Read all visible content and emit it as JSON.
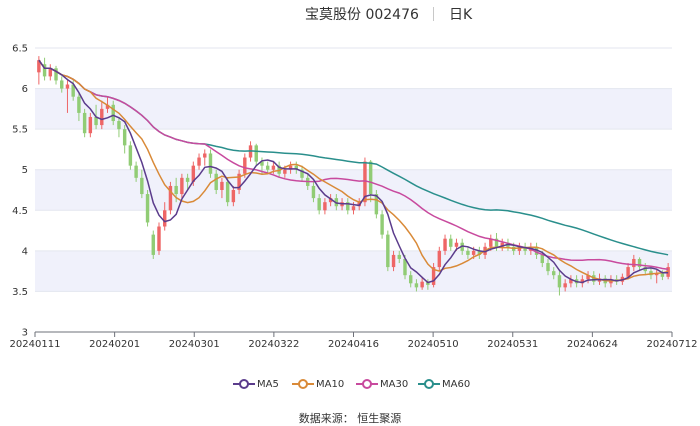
{
  "title": {
    "name": "宝莫股份 002476",
    "period": "日K"
  },
  "source": "数据来源： 恒生聚源",
  "colors": {
    "up": "#ee6666",
    "down": "#91cc75",
    "ma5": "#5b3c8c",
    "ma10": "#d98a38",
    "ma30": "#c84a9e",
    "ma60": "#2a8f8c",
    "band": "#f0f1fb"
  },
  "chart_data": {
    "type": "candlestick",
    "y_ticks": [
      "3",
      "3.5",
      "4",
      "4.5",
      "5",
      "5.5",
      "6",
      "6.5"
    ],
    "ylim": [
      3,
      6.5
    ],
    "x_ticks": [
      "20240111",
      "20240201",
      "20240301",
      "20240322",
      "20240416",
      "20240510",
      "20240531",
      "20240624",
      "20240712"
    ],
    "legend": [
      "MA5",
      "MA10",
      "MA30",
      "MA60"
    ],
    "candles": [
      {
        "o": 6.2,
        "c": 6.35,
        "h": 6.4,
        "l": 6.05
      },
      {
        "o": 6.3,
        "c": 6.15,
        "h": 6.38,
        "l": 6.1
      },
      {
        "o": 6.15,
        "c": 6.25,
        "h": 6.3,
        "l": 6.1
      },
      {
        "o": 6.25,
        "c": 6.1,
        "h": 6.28,
        "l": 6.05
      },
      {
        "o": 6.1,
        "c": 6.0,
        "h": 6.15,
        "l": 5.95
      },
      {
        "o": 6.0,
        "c": 6.05,
        "h": 6.1,
        "l": 5.7
      },
      {
        "o": 6.05,
        "c": 5.9,
        "h": 6.1,
        "l": 5.85
      },
      {
        "o": 5.9,
        "c": 5.7,
        "h": 5.95,
        "l": 5.6
      },
      {
        "o": 5.7,
        "c": 5.45,
        "h": 5.75,
        "l": 5.4
      },
      {
        "o": 5.45,
        "c": 5.65,
        "h": 5.7,
        "l": 5.4
      },
      {
        "o": 5.65,
        "c": 5.55,
        "h": 5.8,
        "l": 5.5
      },
      {
        "o": 5.55,
        "c": 5.75,
        "h": 5.85,
        "l": 5.5
      },
      {
        "o": 5.75,
        "c": 5.8,
        "h": 5.9,
        "l": 5.7
      },
      {
        "o": 5.8,
        "c": 5.6,
        "h": 5.85,
        "l": 5.55
      },
      {
        "o": 5.6,
        "c": 5.5,
        "h": 5.65,
        "l": 5.4
      },
      {
        "o": 5.5,
        "c": 5.3,
        "h": 5.55,
        "l": 5.2
      },
      {
        "o": 5.3,
        "c": 5.05,
        "h": 5.35,
        "l": 5.0
      },
      {
        "o": 5.05,
        "c": 4.9,
        "h": 5.1,
        "l": 4.85
      },
      {
        "o": 4.9,
        "c": 4.7,
        "h": 5.0,
        "l": 4.65
      },
      {
        "o": 4.7,
        "c": 4.35,
        "h": 4.75,
        "l": 4.3
      },
      {
        "o": 4.2,
        "c": 3.95,
        "h": 4.25,
        "l": 3.9
      },
      {
        "o": 4.0,
        "c": 4.3,
        "h": 4.35,
        "l": 3.95
      },
      {
        "o": 4.3,
        "c": 4.5,
        "h": 4.6,
        "l": 4.25
      },
      {
        "o": 4.5,
        "c": 4.8,
        "h": 4.85,
        "l": 4.45
      },
      {
        "o": 4.8,
        "c": 4.7,
        "h": 4.9,
        "l": 4.6
      },
      {
        "o": 4.7,
        "c": 4.9,
        "h": 4.95,
        "l": 4.65
      },
      {
        "o": 4.9,
        "c": 4.85,
        "h": 4.95,
        "l": 4.75
      },
      {
        "o": 4.85,
        "c": 5.05,
        "h": 5.1,
        "l": 4.8
      },
      {
        "o": 5.05,
        "c": 5.15,
        "h": 5.2,
        "l": 5.0
      },
      {
        "o": 5.15,
        "c": 5.2,
        "h": 5.25,
        "l": 5.05
      },
      {
        "o": 5.2,
        "c": 4.95,
        "h": 5.25,
        "l": 4.9
      },
      {
        "o": 4.95,
        "c": 4.75,
        "h": 5.0,
        "l": 4.7
      },
      {
        "o": 4.75,
        "c": 4.85,
        "h": 4.9,
        "l": 4.65
      },
      {
        "o": 4.85,
        "c": 4.6,
        "h": 4.9,
        "l": 4.55
      },
      {
        "o": 4.6,
        "c": 4.75,
        "h": 4.8,
        "l": 4.55
      },
      {
        "o": 4.75,
        "c": 4.95,
        "h": 5.0,
        "l": 4.7
      },
      {
        "o": 4.95,
        "c": 5.15,
        "h": 5.2,
        "l": 4.9
      },
      {
        "o": 5.15,
        "c": 5.3,
        "h": 5.35,
        "l": 5.1
      },
      {
        "o": 5.3,
        "c": 5.1,
        "h": 5.32,
        "l": 5.05
      },
      {
        "o": 5.1,
        "c": 5.05,
        "h": 5.15,
        "l": 4.95
      },
      {
        "o": 5.05,
        "c": 5.0,
        "h": 5.1,
        "l": 4.95
      },
      {
        "o": 5.0,
        "c": 5.05,
        "h": 5.1,
        "l": 4.95
      },
      {
        "o": 5.05,
        "c": 4.95,
        "h": 5.1,
        "l": 4.9
      },
      {
        "o": 4.95,
        "c": 5.0,
        "h": 5.05,
        "l": 4.9
      },
      {
        "o": 5.0,
        "c": 5.05,
        "h": 5.1,
        "l": 4.95
      },
      {
        "o": 5.05,
        "c": 5.0,
        "h": 5.1,
        "l": 4.95
      },
      {
        "o": 5.0,
        "c": 4.9,
        "h": 5.05,
        "l": 4.85
      },
      {
        "o": 4.9,
        "c": 4.8,
        "h": 4.95,
        "l": 4.75
      },
      {
        "o": 4.8,
        "c": 4.65,
        "h": 4.85,
        "l": 4.6
      },
      {
        "o": 4.65,
        "c": 4.5,
        "h": 4.7,
        "l": 4.45
      },
      {
        "o": 4.5,
        "c": 4.6,
        "h": 4.65,
        "l": 4.45
      },
      {
        "o": 4.6,
        "c": 4.65,
        "h": 4.7,
        "l": 4.55
      },
      {
        "o": 4.65,
        "c": 4.55,
        "h": 4.7,
        "l": 4.5
      },
      {
        "o": 4.55,
        "c": 4.6,
        "h": 4.65,
        "l": 4.5
      },
      {
        "o": 4.6,
        "c": 4.5,
        "h": 4.65,
        "l": 4.45
      },
      {
        "o": 4.5,
        "c": 4.55,
        "h": 4.6,
        "l": 4.45
      },
      {
        "o": 4.55,
        "c": 4.6,
        "h": 4.65,
        "l": 4.5
      },
      {
        "o": 4.6,
        "c": 5.1,
        "h": 5.15,
        "l": 4.55
      },
      {
        "o": 5.1,
        "c": 4.7,
        "h": 5.12,
        "l": 4.6
      },
      {
        "o": 4.7,
        "c": 4.45,
        "h": 4.75,
        "l": 4.4
      },
      {
        "o": 4.45,
        "c": 4.2,
        "h": 4.5,
        "l": 4.15
      },
      {
        "o": 4.2,
        "c": 3.8,
        "h": 4.25,
        "l": 3.75
      },
      {
        "o": 3.8,
        "c": 3.95,
        "h": 4.0,
        "l": 3.75
      },
      {
        "o": 3.95,
        "c": 3.9,
        "h": 4.0,
        "l": 3.85
      },
      {
        "o": 3.9,
        "c": 3.7,
        "h": 3.95,
        "l": 3.65
      },
      {
        "o": 3.7,
        "c": 3.6,
        "h": 3.75,
        "l": 3.55
      },
      {
        "o": 3.6,
        "c": 3.55,
        "h": 3.65,
        "l": 3.5
      },
      {
        "o": 3.55,
        "c": 3.62,
        "h": 3.68,
        "l": 3.52
      },
      {
        "o": 3.62,
        "c": 3.58,
        "h": 3.65,
        "l": 3.52
      },
      {
        "o": 3.58,
        "c": 3.8,
        "h": 3.85,
        "l": 3.55
      },
      {
        "o": 3.8,
        "c": 4.0,
        "h": 4.05,
        "l": 3.75
      },
      {
        "o": 4.0,
        "c": 4.15,
        "h": 4.2,
        "l": 3.95
      },
      {
        "o": 4.15,
        "c": 4.05,
        "h": 4.2,
        "l": 4.0
      },
      {
        "o": 4.05,
        "c": 4.1,
        "h": 4.15,
        "l": 4.0
      },
      {
        "o": 4.1,
        "c": 4.0,
        "h": 4.15,
        "l": 3.95
      },
      {
        "o": 4.0,
        "c": 3.95,
        "h": 4.05,
        "l": 3.9
      },
      {
        "o": 3.95,
        "c": 4.0,
        "h": 4.05,
        "l": 3.9
      },
      {
        "o": 4.0,
        "c": 3.95,
        "h": 4.05,
        "l": 3.9
      },
      {
        "o": 3.95,
        "c": 4.05,
        "h": 4.1,
        "l": 3.9
      },
      {
        "o": 4.05,
        "c": 4.15,
        "h": 4.2,
        "l": 4.0
      },
      {
        "o": 4.15,
        "c": 4.05,
        "h": 4.22,
        "l": 4.0
      },
      {
        "o": 4.05,
        "c": 4.1,
        "h": 4.15,
        "l": 4.0
      },
      {
        "o": 4.1,
        "c": 4.05,
        "h": 4.15,
        "l": 4.0
      },
      {
        "o": 4.05,
        "c": 4.0,
        "h": 4.1,
        "l": 3.95
      },
      {
        "o": 4.0,
        "c": 4.05,
        "h": 4.1,
        "l": 3.95
      },
      {
        "o": 4.05,
        "c": 4.0,
        "h": 4.1,
        "l": 3.95
      },
      {
        "o": 4.0,
        "c": 4.05,
        "h": 4.1,
        "l": 3.95
      },
      {
        "o": 4.05,
        "c": 3.95,
        "h": 4.1,
        "l": 3.9
      },
      {
        "o": 3.95,
        "c": 3.85,
        "h": 4.0,
        "l": 3.8
      },
      {
        "o": 3.85,
        "c": 3.75,
        "h": 3.9,
        "l": 3.7
      },
      {
        "o": 3.75,
        "c": 3.7,
        "h": 3.8,
        "l": 3.65
      },
      {
        "o": 3.7,
        "c": 3.55,
        "h": 3.75,
        "l": 3.45
      },
      {
        "o": 3.55,
        "c": 3.6,
        "h": 3.65,
        "l": 3.5
      },
      {
        "o": 3.6,
        "c": 3.65,
        "h": 3.7,
        "l": 3.55
      },
      {
        "o": 3.65,
        "c": 3.6,
        "h": 3.7,
        "l": 3.55
      },
      {
        "o": 3.6,
        "c": 3.65,
        "h": 3.7,
        "l": 3.55
      },
      {
        "o": 3.65,
        "c": 3.7,
        "h": 3.75,
        "l": 3.6
      },
      {
        "o": 3.7,
        "c": 3.62,
        "h": 3.75,
        "l": 3.58
      },
      {
        "o": 3.62,
        "c": 3.66,
        "h": 3.72,
        "l": 3.58
      },
      {
        "o": 3.66,
        "c": 3.6,
        "h": 3.7,
        "l": 3.55
      },
      {
        "o": 3.6,
        "c": 3.65,
        "h": 3.7,
        "l": 3.55
      },
      {
        "o": 3.65,
        "c": 3.62,
        "h": 3.7,
        "l": 3.58
      },
      {
        "o": 3.62,
        "c": 3.68,
        "h": 3.72,
        "l": 3.58
      },
      {
        "o": 3.68,
        "c": 3.8,
        "h": 3.85,
        "l": 3.65
      },
      {
        "o": 3.8,
        "c": 3.9,
        "h": 3.95,
        "l": 3.75
      },
      {
        "o": 3.9,
        "c": 3.8,
        "h": 3.92,
        "l": 3.75
      },
      {
        "o": 3.8,
        "c": 3.75,
        "h": 3.85,
        "l": 3.7
      },
      {
        "o": 3.75,
        "c": 3.7,
        "h": 3.8,
        "l": 3.65
      },
      {
        "o": 3.7,
        "c": 3.72,
        "h": 3.78,
        "l": 3.6
      },
      {
        "o": 3.72,
        "c": 3.68,
        "h": 3.76,
        "l": 3.64
      },
      {
        "o": 3.68,
        "c": 3.8,
        "h": 3.85,
        "l": 3.65
      }
    ]
  }
}
